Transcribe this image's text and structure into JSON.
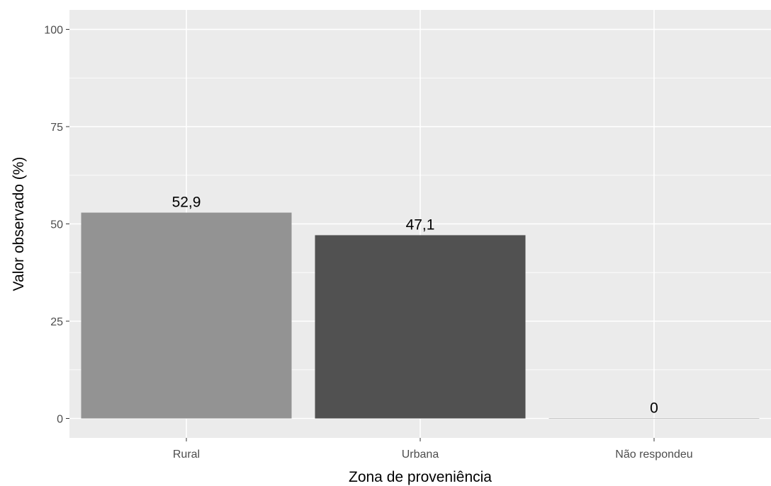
{
  "chart_data": {
    "type": "bar",
    "title": "",
    "xlabel": "Zona de proveniência",
    "ylabel": "Valor observado (%)",
    "categories": [
      "Rural",
      "Urbana",
      "Não respondeu"
    ],
    "values": [
      52.9,
      47.1,
      0
    ],
    "data_labels": [
      "52,9",
      "47,1",
      "0"
    ],
    "ylim": [
      -5,
      105
    ],
    "yticks": [
      0,
      25,
      50,
      75,
      100
    ],
    "ytick_labels": [
      "0",
      "25",
      "50",
      "75",
      "100"
    ],
    "grid": true,
    "legend": "none",
    "colors": {
      "panel_background": "#ebebeb",
      "grid": "#ffffff",
      "bars": [
        "#939393",
        "#515151",
        "#c8c8c8"
      ],
      "tick_mark": "#333333"
    }
  }
}
